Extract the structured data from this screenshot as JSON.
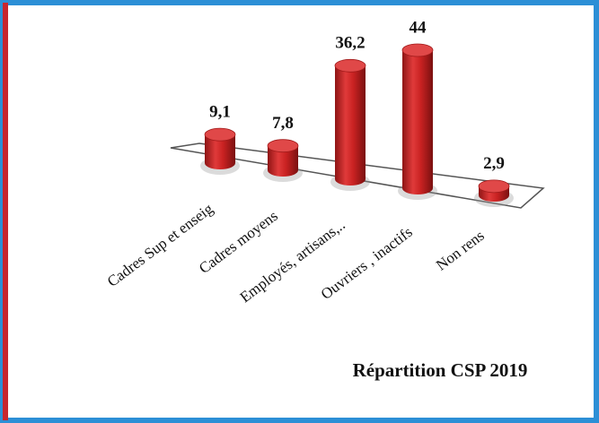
{
  "chart_data": {
    "type": "bar",
    "title": "Répartition CSP 2019",
    "categories": [
      "Cadres Sup et enseig",
      "Cadres moyens",
      "Employés, artisans,..",
      "Ouvriers , inactifs",
      "Non rens"
    ],
    "values": [
      9.1,
      7.8,
      36.2,
      44,
      2.9
    ],
    "value_labels": [
      "9,1",
      "7,8",
      "36,2",
      "44",
      "2,9"
    ],
    "color": "#d42a2a"
  }
}
